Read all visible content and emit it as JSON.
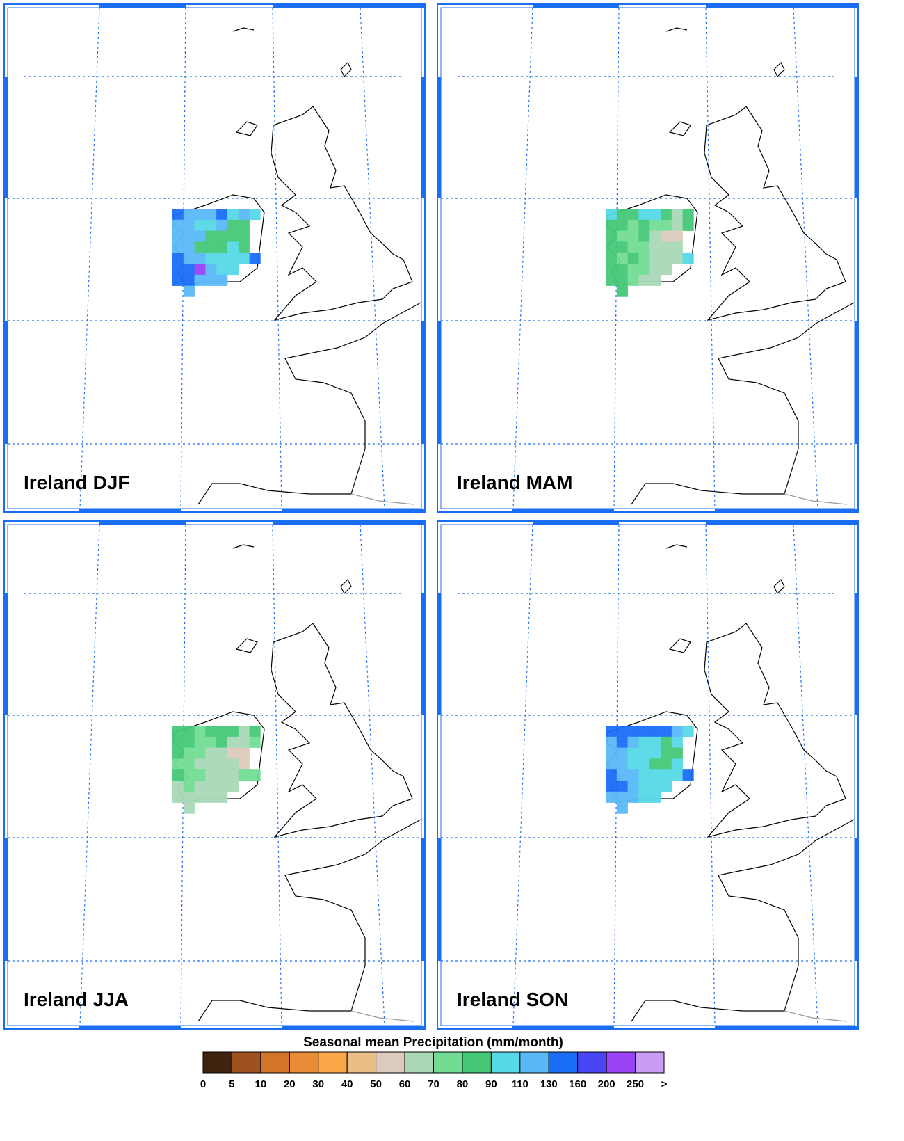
{
  "panels": [
    {
      "label": "Ireland DJF",
      "cells": [
        [
          140,
          120,
          120,
          120,
          140,
          100,
          120,
          100
        ],
        [
          120,
          120,
          100,
          100,
          120,
          80,
          85,
          null
        ],
        [
          120,
          120,
          110,
          85,
          85,
          85,
          80,
          null
        ],
        [
          120,
          110,
          85,
          85,
          85,
          100,
          85,
          null
        ],
        [
          140,
          120,
          120,
          100,
          100,
          100,
          100,
          140
        ],
        [
          140,
          140,
          210,
          120,
          100,
          100,
          null,
          null
        ],
        [
          140,
          140,
          120,
          120,
          120,
          null,
          null,
          null
        ],
        [
          null,
          120,
          null,
          null,
          null,
          null,
          null,
          null
        ]
      ]
    },
    {
      "label": "Ireland MAM",
      "cells": [
        [
          100,
          80,
          80,
          100,
          100,
          80,
          65,
          80
        ],
        [
          80,
          80,
          75,
          85,
          75,
          75,
          65,
          80
        ],
        [
          80,
          75,
          75,
          80,
          65,
          55,
          55,
          null
        ],
        [
          80,
          80,
          75,
          75,
          65,
          65,
          65,
          null
        ],
        [
          80,
          75,
          85,
          75,
          65,
          65,
          65,
          100
        ],
        [
          80,
          85,
          75,
          75,
          65,
          65,
          null,
          null
        ],
        [
          80,
          80,
          75,
          65,
          65,
          null,
          null,
          null
        ],
        [
          null,
          85,
          null,
          null,
          null,
          null,
          null,
          null
        ]
      ]
    },
    {
      "label": "Ireland JJA",
      "cells": [
        [
          80,
          80,
          75,
          80,
          85,
          80,
          65,
          85
        ],
        [
          80,
          85,
          75,
          75,
          80,
          65,
          65,
          75
        ],
        [
          80,
          75,
          75,
          65,
          65,
          55,
          55,
          null
        ],
        [
          75,
          75,
          65,
          65,
          65,
          65,
          55,
          null
        ],
        [
          80,
          75,
          75,
          65,
          65,
          65,
          75,
          75
        ],
        [
          65,
          75,
          65,
          65,
          65,
          65,
          null,
          null
        ],
        [
          65,
          65,
          65,
          65,
          65,
          null,
          null,
          null
        ],
        [
          null,
          65,
          null,
          null,
          null,
          null,
          null,
          null
        ]
      ]
    },
    {
      "label": "Ireland SON",
      "cells": [
        [
          140,
          140,
          140,
          140,
          140,
          130,
          120,
          100
        ],
        [
          120,
          140,
          120,
          100,
          100,
          85,
          100,
          null
        ],
        [
          120,
          120,
          100,
          100,
          100,
          85,
          85,
          null
        ],
        [
          120,
          120,
          100,
          100,
          85,
          85,
          100,
          null
        ],
        [
          140,
          120,
          120,
          100,
          100,
          100,
          100,
          140
        ],
        [
          140,
          140,
          120,
          100,
          100,
          100,
          null,
          null
        ],
        [
          120,
          120,
          120,
          100,
          100,
          null,
          null,
          null
        ],
        [
          null,
          120,
          null,
          null,
          null,
          null,
          null,
          null
        ]
      ]
    }
  ],
  "colorbar": {
    "title": "Seasonal mean Precipitation (mm/month)",
    "levels": [
      0,
      5,
      10,
      20,
      30,
      40,
      50,
      60,
      70,
      80,
      90,
      110,
      130,
      160,
      200,
      250
    ],
    "overflow_label": ">",
    "colors": [
      "#3f230f",
      "#a0521e",
      "#d2742a",
      "#e88c35",
      "#fba84a",
      "#ebbd87",
      "#dccbbd",
      "#a9d8b6",
      "#72dc93",
      "#44c878",
      "#55d9e6",
      "#5ab8f8",
      "#1a6ef5",
      "#4a45f4",
      "#9a42f6",
      "#cb9cf5"
    ]
  }
}
